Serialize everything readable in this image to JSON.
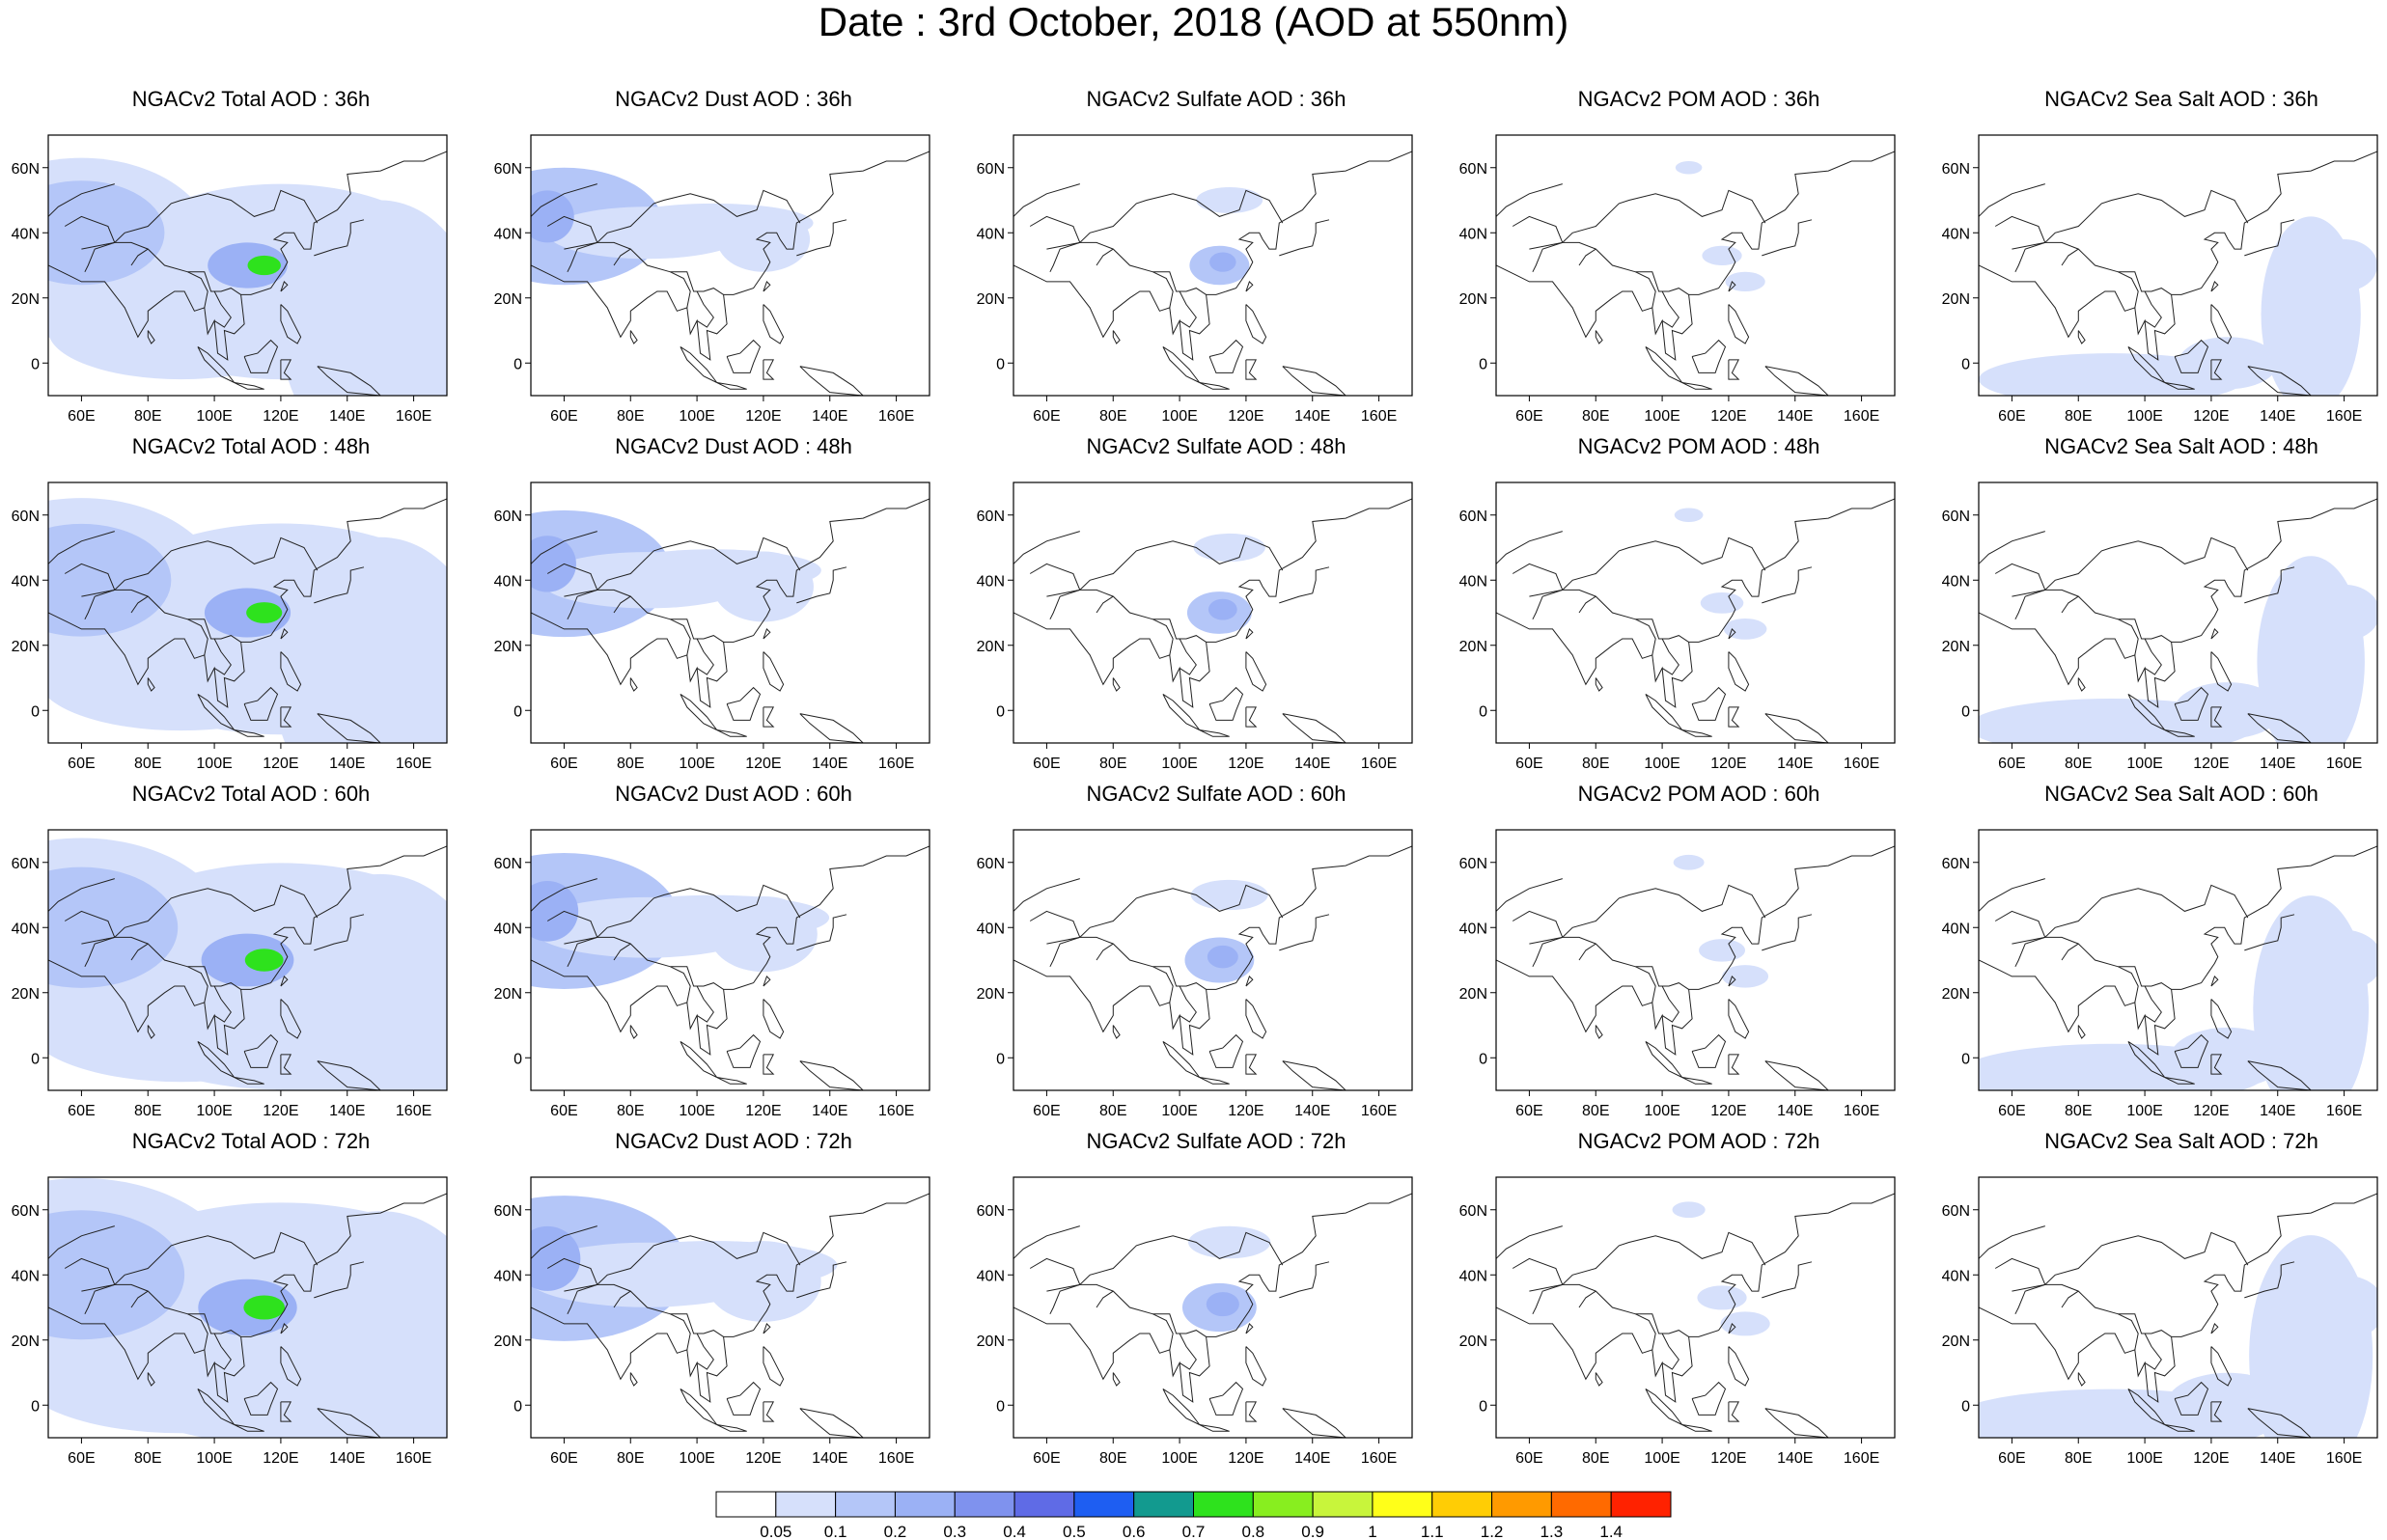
{
  "title": "Date : 3rd October, 2018 (AOD at 550nm)",
  "axes": {
    "lat_ticks": [
      "60N",
      "40N",
      "20N",
      "0"
    ],
    "lon_ticks": [
      "60E",
      "80E",
      "100E",
      "120E",
      "140E",
      "160E"
    ],
    "lat_values": [
      60,
      40,
      20,
      0
    ],
    "lon_values": [
      60,
      80,
      100,
      120,
      140,
      160
    ],
    "lon_range": [
      50,
      170
    ],
    "lat_range": [
      -10,
      70
    ]
  },
  "species": [
    "total",
    "dust",
    "sulfate",
    "pom",
    "seasalt"
  ],
  "times": [
    "36h",
    "48h",
    "60h",
    "72h"
  ],
  "panel_titles": [
    [
      "NGACv2 Total AOD : 36h",
      "NGACv2 Dust AOD : 36h",
      "NGACv2 Sulfate AOD : 36h",
      "NGACv2 POM AOD : 36h",
      "NGACv2 Sea Salt AOD : 36h"
    ],
    [
      "NGACv2 Total AOD : 48h",
      "NGACv2 Dust AOD : 48h",
      "NGACv2 Sulfate AOD : 48h",
      "NGACv2 POM AOD : 48h",
      "NGACv2 Sea Salt AOD : 48h"
    ],
    [
      "NGACv2 Total AOD : 60h",
      "NGACv2 Dust AOD : 60h",
      "NGACv2 Sulfate AOD : 60h",
      "NGACv2 POM AOD : 60h",
      "NGACv2 Sea Salt AOD : 60h"
    ],
    [
      "NGACv2 Total AOD : 72h",
      "NGACv2 Dust AOD : 72h",
      "NGACv2 Sulfate AOD : 72h",
      "NGACv2 POM AOD : 72h",
      "NGACv2 Sea Salt  AOD : 72h"
    ]
  ],
  "colorbar": {
    "labels": [
      "0.05",
      "0.1",
      "0.2",
      "0.3",
      "0.4",
      "0.5",
      "0.6",
      "0.7",
      "0.8",
      "0.9",
      "1",
      "1.1",
      "1.2",
      "1.3",
      "1.4"
    ],
    "colors": [
      "#ffffff",
      "#d6e0fb",
      "#b4c6f8",
      "#9bb1f5",
      "#7f92ee",
      "#5f6be6",
      "#1e5ef2",
      "#129a8f",
      "#2ee21d",
      "#88ee1f",
      "#c8f53b",
      "#ffff19",
      "#ffcd05",
      "#ff9a00",
      "#ff6a00",
      "#ff2200"
    ]
  }
}
